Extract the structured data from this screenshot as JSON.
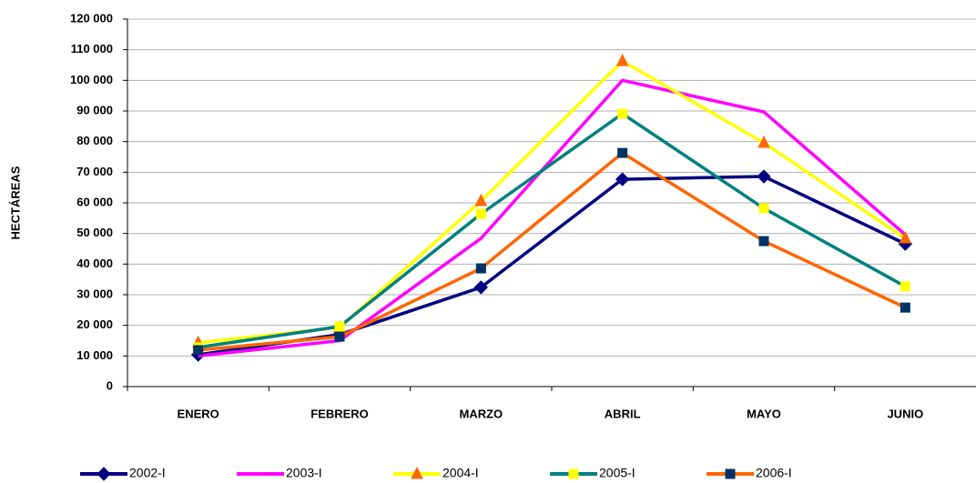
{
  "chart_data": {
    "type": "line",
    "y_label": "HECTÁREAS",
    "categories": [
      "ENERO",
      "FEBRERO",
      "MARZO",
      "ABRIL",
      "MAYO",
      "JUNIO"
    ],
    "series": [
      {
        "name": "2002-I",
        "color": "#000080",
        "marker": "diamond",
        "marker_color": "#000080",
        "values": [
          10400,
          17000,
          32400,
          67700,
          68600,
          46600
        ]
      },
      {
        "name": "2003-I",
        "color": "#ff00ff",
        "marker": "none",
        "marker_color": "#ff00ff",
        "values": [
          10000,
          15000,
          48400,
          100000,
          89700,
          49600
        ]
      },
      {
        "name": "2004-I",
        "color": "#ffff00",
        "marker": "triangle",
        "marker_color": "#ff6600",
        "values": [
          14300,
          19300,
          60600,
          106300,
          79600,
          48400
        ]
      },
      {
        "name": "2005-I",
        "color": "#008080",
        "marker": "square",
        "marker_color": "#ffff00",
        "values": [
          12800,
          19600,
          56400,
          89100,
          58200,
          32700
        ]
      },
      {
        "name": "2006-I",
        "color": "#ff6600",
        "marker": "square",
        "marker_color": "#003366",
        "values": [
          11900,
          16300,
          38600,
          76300,
          47500,
          25800
        ]
      }
    ],
    "ylim": [
      0,
      120000
    ],
    "yticks": [
      0,
      {
        "value": 10000,
        "label": "10 000"
      },
      {
        "value": 20000,
        "label": "20 000"
      },
      {
        "value": 30000,
        "label": "30 000"
      },
      {
        "value": 40000,
        "label": "40 000"
      },
      {
        "value": 50000,
        "label": "50 000"
      },
      {
        "value": 60000,
        "label": "60 000"
      },
      {
        "value": 70000,
        "label": "70 000"
      },
      {
        "value": 80000,
        "label": "80 000"
      },
      {
        "value": 90000,
        "label": "90 000"
      },
      {
        "value": 100000,
        "label": "100 000"
      },
      {
        "value": 110000,
        "label": "110 000"
      },
      {
        "value": 120000,
        "label": "120 000"
      }
    ],
    "grid": true,
    "legend": "bottom"
  }
}
